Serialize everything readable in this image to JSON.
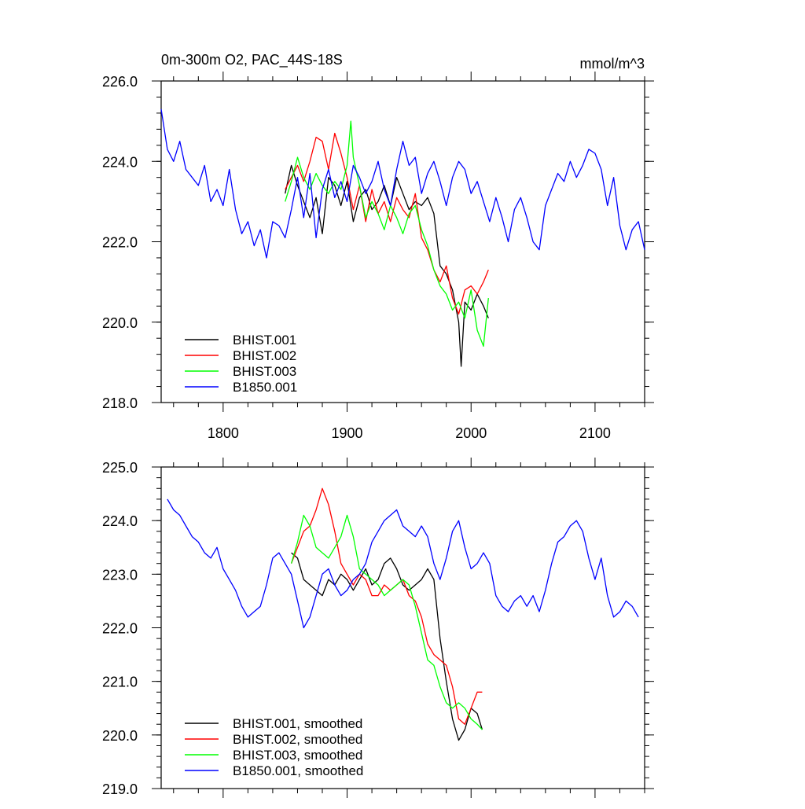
{
  "header": {
    "title": "0m-300m O2, PAC_44S-18S",
    "units": "mmol/m^3"
  },
  "chart_data": [
    {
      "type": "line",
      "title": "0m-300m O2, PAC_44S-18S",
      "units": "mmol/m^3",
      "xlim": [
        1750,
        2140
      ],
      "ylim": [
        218,
        226
      ],
      "x_ticks": [
        1800,
        1900,
        2000,
        2100
      ],
      "x_tick_labels": [
        "1800",
        "1900",
        "2000",
        "2100"
      ],
      "y_ticks": [
        218,
        220,
        222,
        224,
        226
      ],
      "y_tick_labels": [
        "218.0",
        "220.0",
        "222.0",
        "224.0",
        "226.0"
      ],
      "legend_position": "bottom-left",
      "series": [
        {
          "name": "BHIST.001",
          "color": "#000000",
          "x": [
            1850,
            1855,
            1860,
            1865,
            1870,
            1875,
            1880,
            1885,
            1890,
            1895,
            1900,
            1905,
            1910,
            1915,
            1920,
            1925,
            1930,
            1935,
            1940,
            1945,
            1950,
            1955,
            1960,
            1965,
            1970,
            1975,
            1980,
            1985,
            1990,
            1992,
            1995,
            2000,
            2005,
            2010,
            2014
          ],
          "y": [
            223.2,
            223.9,
            223.4,
            223.0,
            222.6,
            223.1,
            222.2,
            223.6,
            223.4,
            222.9,
            223.5,
            222.5,
            223.1,
            223.3,
            222.8,
            223.0,
            223.4,
            222.9,
            223.6,
            223.2,
            222.8,
            223.0,
            222.9,
            223.1,
            222.7,
            221.4,
            221.2,
            220.8,
            220.0,
            218.9,
            220.5,
            220.3,
            220.7,
            220.4,
            220.1
          ]
        },
        {
          "name": "BHIST.002",
          "color": "#ff0000",
          "x": [
            1850,
            1855,
            1860,
            1865,
            1870,
            1875,
            1880,
            1885,
            1890,
            1895,
            1900,
            1905,
            1910,
            1915,
            1920,
            1925,
            1930,
            1935,
            1940,
            1945,
            1950,
            1955,
            1960,
            1965,
            1970,
            1975,
            1980,
            1985,
            1990,
            1995,
            2000,
            2005,
            2010,
            2014
          ],
          "y": [
            223.3,
            223.6,
            223.9,
            223.5,
            224.0,
            224.6,
            224.5,
            223.8,
            224.7,
            224.2,
            223.6,
            222.8,
            223.4,
            222.5,
            223.3,
            222.7,
            223.0,
            222.5,
            223.1,
            222.8,
            222.6,
            223.2,
            222.1,
            221.8,
            221.3,
            221.0,
            221.4,
            220.6,
            220.2,
            220.8,
            220.9,
            220.7,
            221.0,
            221.3
          ]
        },
        {
          "name": "BHIST.003",
          "color": "#00ff00",
          "x": [
            1850,
            1855,
            1860,
            1865,
            1870,
            1875,
            1880,
            1885,
            1890,
            1895,
            1900,
            1903,
            1905,
            1910,
            1915,
            1920,
            1925,
            1930,
            1935,
            1940,
            1945,
            1950,
            1955,
            1960,
            1965,
            1970,
            1975,
            1980,
            1985,
            1990,
            1995,
            2000,
            2005,
            2010,
            2014
          ],
          "y": [
            223.0,
            223.5,
            224.1,
            223.6,
            223.3,
            223.7,
            223.4,
            223.2,
            223.5,
            223.3,
            223.9,
            225.0,
            224.1,
            223.4,
            222.6,
            223.0,
            222.7,
            222.3,
            222.9,
            222.6,
            222.2,
            222.7,
            222.9,
            222.3,
            221.9,
            221.3,
            220.9,
            220.7,
            220.3,
            220.5,
            220.1,
            220.8,
            219.8,
            219.4,
            220.6
          ]
        },
        {
          "name": "B1850.001",
          "color": "#0000ff",
          "x": [
            1750,
            1755,
            1760,
            1765,
            1770,
            1775,
            1780,
            1785,
            1790,
            1795,
            1800,
            1805,
            1810,
            1815,
            1820,
            1825,
            1830,
            1835,
            1840,
            1845,
            1850,
            1855,
            1860,
            1865,
            1870,
            1875,
            1880,
            1885,
            1890,
            1895,
            1900,
            1905,
            1910,
            1915,
            1920,
            1925,
            1930,
            1935,
            1940,
            1945,
            1950,
            1955,
            1960,
            1965,
            1970,
            1975,
            1980,
            1985,
            1990,
            1995,
            2000,
            2005,
            2010,
            2015,
            2020,
            2025,
            2030,
            2035,
            2040,
            2045,
            2050,
            2055,
            2060,
            2065,
            2070,
            2075,
            2080,
            2085,
            2090,
            2095,
            2100,
            2105,
            2110,
            2115,
            2120,
            2125,
            2130,
            2135,
            2140
          ],
          "y": [
            225.3,
            224.3,
            224.0,
            224.5,
            223.8,
            223.6,
            223.4,
            223.9,
            223.0,
            223.3,
            222.9,
            223.8,
            222.8,
            222.2,
            222.5,
            221.9,
            222.3,
            221.6,
            222.5,
            222.4,
            222.1,
            222.8,
            223.6,
            222.6,
            223.7,
            222.1,
            223.3,
            223.8,
            223.1,
            223.5,
            223.0,
            223.9,
            223.6,
            223.2,
            223.5,
            224.0,
            223.3,
            222.9,
            223.8,
            224.5,
            223.9,
            224.1,
            223.2,
            223.7,
            224.0,
            223.5,
            222.9,
            223.6,
            224.0,
            223.8,
            223.2,
            223.5,
            223.0,
            222.5,
            223.1,
            222.6,
            222.0,
            222.8,
            223.1,
            222.6,
            222.0,
            221.8,
            222.9,
            223.3,
            223.7,
            223.5,
            224.0,
            223.6,
            223.9,
            224.3,
            224.2,
            223.8,
            222.9,
            223.6,
            222.4,
            221.8,
            222.3,
            222.5,
            221.8
          ]
        }
      ]
    },
    {
      "type": "line",
      "xlim": [
        1750,
        2140
      ],
      "ylim": [
        219,
        225
      ],
      "x_ticks": [
        1800,
        1900,
        2000,
        2100
      ],
      "y_ticks": [
        219,
        220,
        221,
        222,
        223,
        224,
        225
      ],
      "y_tick_labels": [
        "219.0",
        "220.0",
        "221.0",
        "222.0",
        "223.0",
        "224.0",
        "225.0"
      ],
      "legend_position": "bottom-left",
      "series": [
        {
          "name": "BHIST.001, smoothed",
          "color": "#000000",
          "x": [
            1855,
            1860,
            1865,
            1870,
            1875,
            1880,
            1885,
            1890,
            1895,
            1900,
            1905,
            1910,
            1915,
            1920,
            1925,
            1930,
            1935,
            1940,
            1945,
            1950,
            1955,
            1960,
            1965,
            1970,
            1975,
            1980,
            1985,
            1990,
            1995,
            2000,
            2005,
            2009
          ],
          "y": [
            223.4,
            223.3,
            222.9,
            222.8,
            222.7,
            222.6,
            222.9,
            222.8,
            223.0,
            222.9,
            222.7,
            222.9,
            223.1,
            222.8,
            222.9,
            223.2,
            223.3,
            223.1,
            222.8,
            222.7,
            222.8,
            222.9,
            223.1,
            222.9,
            221.8,
            221.0,
            220.3,
            219.9,
            220.1,
            220.5,
            220.4,
            220.1
          ]
        },
        {
          "name": "BHIST.002, smoothed",
          "color": "#ff0000",
          "x": [
            1855,
            1860,
            1865,
            1870,
            1875,
            1880,
            1885,
            1890,
            1895,
            1900,
            1905,
            1910,
            1915,
            1920,
            1925,
            1930,
            1935,
            1940,
            1945,
            1950,
            1955,
            1960,
            1965,
            1970,
            1975,
            1980,
            1985,
            1990,
            1995,
            2000,
            2005,
            2009
          ],
          "y": [
            223.2,
            223.5,
            223.8,
            223.9,
            224.2,
            224.6,
            224.3,
            223.8,
            223.2,
            223.0,
            222.8,
            223.0,
            222.9,
            222.6,
            222.6,
            222.8,
            222.7,
            222.8,
            222.9,
            222.6,
            222.5,
            222.2,
            221.7,
            221.5,
            221.4,
            221.3,
            220.9,
            220.3,
            220.2,
            220.5,
            220.8,
            220.8
          ]
        },
        {
          "name": "BHIST.003, smoothed",
          "color": "#00ff00",
          "x": [
            1855,
            1860,
            1865,
            1870,
            1875,
            1880,
            1885,
            1890,
            1895,
            1900,
            1905,
            1910,
            1915,
            1920,
            1925,
            1930,
            1935,
            1940,
            1945,
            1950,
            1955,
            1960,
            1965,
            1970,
            1975,
            1980,
            1985,
            1990,
            1995,
            2000,
            2005,
            2009
          ],
          "y": [
            223.2,
            223.6,
            224.1,
            223.9,
            223.5,
            223.4,
            223.3,
            223.5,
            223.7,
            224.1,
            223.7,
            223.1,
            223.0,
            222.9,
            222.8,
            222.6,
            222.7,
            222.8,
            222.9,
            222.8,
            222.4,
            221.9,
            221.4,
            221.3,
            220.9,
            220.6,
            220.5,
            220.6,
            220.5,
            220.3,
            220.2,
            220.1
          ]
        },
        {
          "name": "B1850.001, smoothed",
          "color": "#0000ff",
          "x": [
            1755,
            1760,
            1765,
            1770,
            1775,
            1780,
            1785,
            1790,
            1795,
            1800,
            1805,
            1810,
            1815,
            1820,
            1825,
            1830,
            1835,
            1840,
            1845,
            1850,
            1855,
            1860,
            1865,
            1870,
            1875,
            1880,
            1885,
            1890,
            1895,
            1900,
            1905,
            1910,
            1915,
            1920,
            1925,
            1930,
            1935,
            1940,
            1945,
            1950,
            1955,
            1960,
            1965,
            1970,
            1975,
            1980,
            1985,
            1990,
            1995,
            2000,
            2005,
            2010,
            2015,
            2020,
            2025,
            2030,
            2035,
            2040,
            2045,
            2050,
            2055,
            2060,
            2065,
            2070,
            2075,
            2080,
            2085,
            2090,
            2095,
            2100,
            2105,
            2110,
            2115,
            2120,
            2125,
            2130,
            2135
          ],
          "y": [
            224.4,
            224.2,
            224.1,
            223.9,
            223.7,
            223.6,
            223.4,
            223.3,
            223.5,
            223.1,
            222.9,
            222.7,
            222.4,
            222.2,
            222.3,
            222.4,
            222.8,
            223.3,
            223.4,
            223.2,
            223.0,
            222.5,
            222.0,
            222.2,
            222.6,
            223.0,
            223.1,
            222.8,
            222.6,
            222.7,
            222.9,
            223.0,
            223.2,
            223.6,
            223.8,
            224.0,
            224.1,
            224.2,
            223.9,
            223.8,
            223.7,
            223.9,
            223.7,
            223.2,
            222.9,
            223.3,
            223.8,
            224.0,
            223.5,
            223.1,
            223.2,
            223.4,
            223.2,
            222.6,
            222.4,
            222.3,
            222.5,
            222.6,
            222.4,
            222.6,
            222.3,
            222.7,
            223.2,
            223.6,
            223.7,
            223.9,
            224.0,
            223.8,
            223.3,
            222.9,
            223.3,
            222.6,
            222.2,
            222.3,
            222.5,
            222.4,
            222.2
          ]
        }
      ]
    }
  ]
}
